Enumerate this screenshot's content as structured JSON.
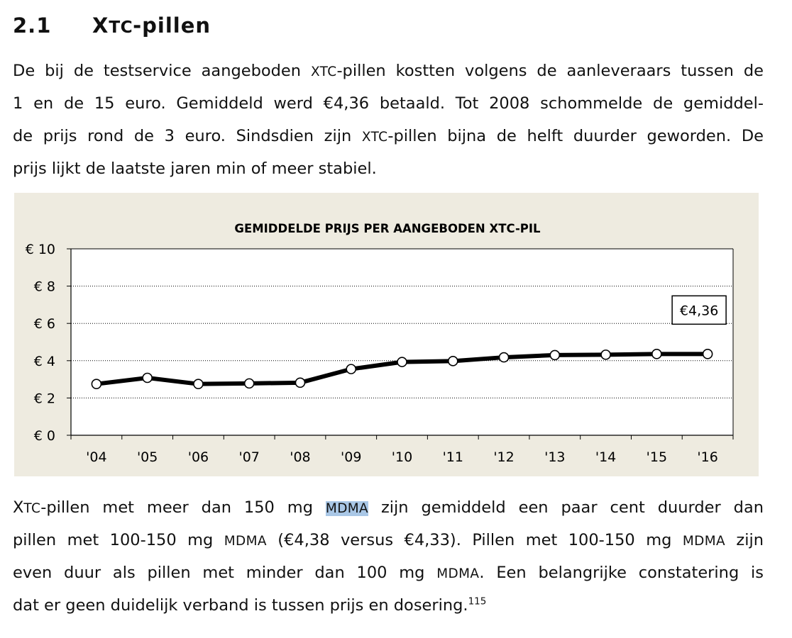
{
  "heading": {
    "number": "2.1",
    "title_prefix": "X",
    "title_sc": "TC",
    "title_suffix": "-pillen"
  },
  "paragraph1": {
    "l1_a": "De bij de testservice aangeboden ",
    "l1_sc": "XTC",
    "l1_b": "-pillen kostten volgens de aanleveraars tussen de",
    "l2": "1 en de 15 euro. Gemiddeld werd €4,36 betaald. Tot 2008 schommelde de gemiddel-",
    "l3_a": "de prijs rond de 3 euro. Sindsdien zijn ",
    "l3_sc": "XTC",
    "l3_b": "-pillen bijna de helft duurder geworden. De",
    "l4": "prijs lijkt de laatste jaren min of meer stabiel."
  },
  "paragraph2": {
    "l1_a": "X",
    "l1_sc": "TC",
    "l1_b": "-pillen met meer dan 150 mg ",
    "l1_hl": "MDMA",
    "l1_c": " zijn gemiddeld een paar cent duurder dan",
    "l2_a": "pillen met 100-150 mg ",
    "l2_sc1": "MDMA",
    "l2_b": " (€4,38 versus €4,33). Pillen met 100-150 mg ",
    "l2_sc2": "MDMA",
    "l2_c": " zijn",
    "l3_a": "even duur als pillen met minder dan 100 mg ",
    "l3_sc": "MDMA",
    "l3_b": ". Een belangrijke constatering is",
    "l4": "dat er geen duidelijk verband is tussen prijs en dosering.",
    "footnote": "115"
  },
  "chart_data": {
    "type": "line",
    "title": "GEMIDDELDE PRIJS PER AANGEBODEN XTC-PIL",
    "categories": [
      "'04",
      "'05",
      "'06",
      "'07",
      "'08",
      "'09",
      "'10",
      "'11",
      "'12",
      "'13",
      "'14",
      "'15",
      "'16"
    ],
    "values": [
      2.75,
      3.08,
      2.75,
      2.78,
      2.82,
      3.55,
      3.93,
      3.98,
      4.18,
      4.3,
      4.32,
      4.36,
      4.36
    ],
    "ylim": [
      0,
      10
    ],
    "yticks": [
      0,
      2,
      4,
      6,
      8,
      10
    ],
    "ytick_labels": [
      "€ 0",
      "€ 2",
      "€ 4",
      "€ 6",
      "€ 8",
      "€ 10"
    ],
    "annotation": {
      "text": "€4,36",
      "index": 12
    },
    "grid": "dotted horizontal",
    "legend": "none",
    "colors": {
      "background": "#eeebe0",
      "plot": "#ffffff",
      "line": "#000000",
      "marker_fill": "#ffffff"
    }
  }
}
